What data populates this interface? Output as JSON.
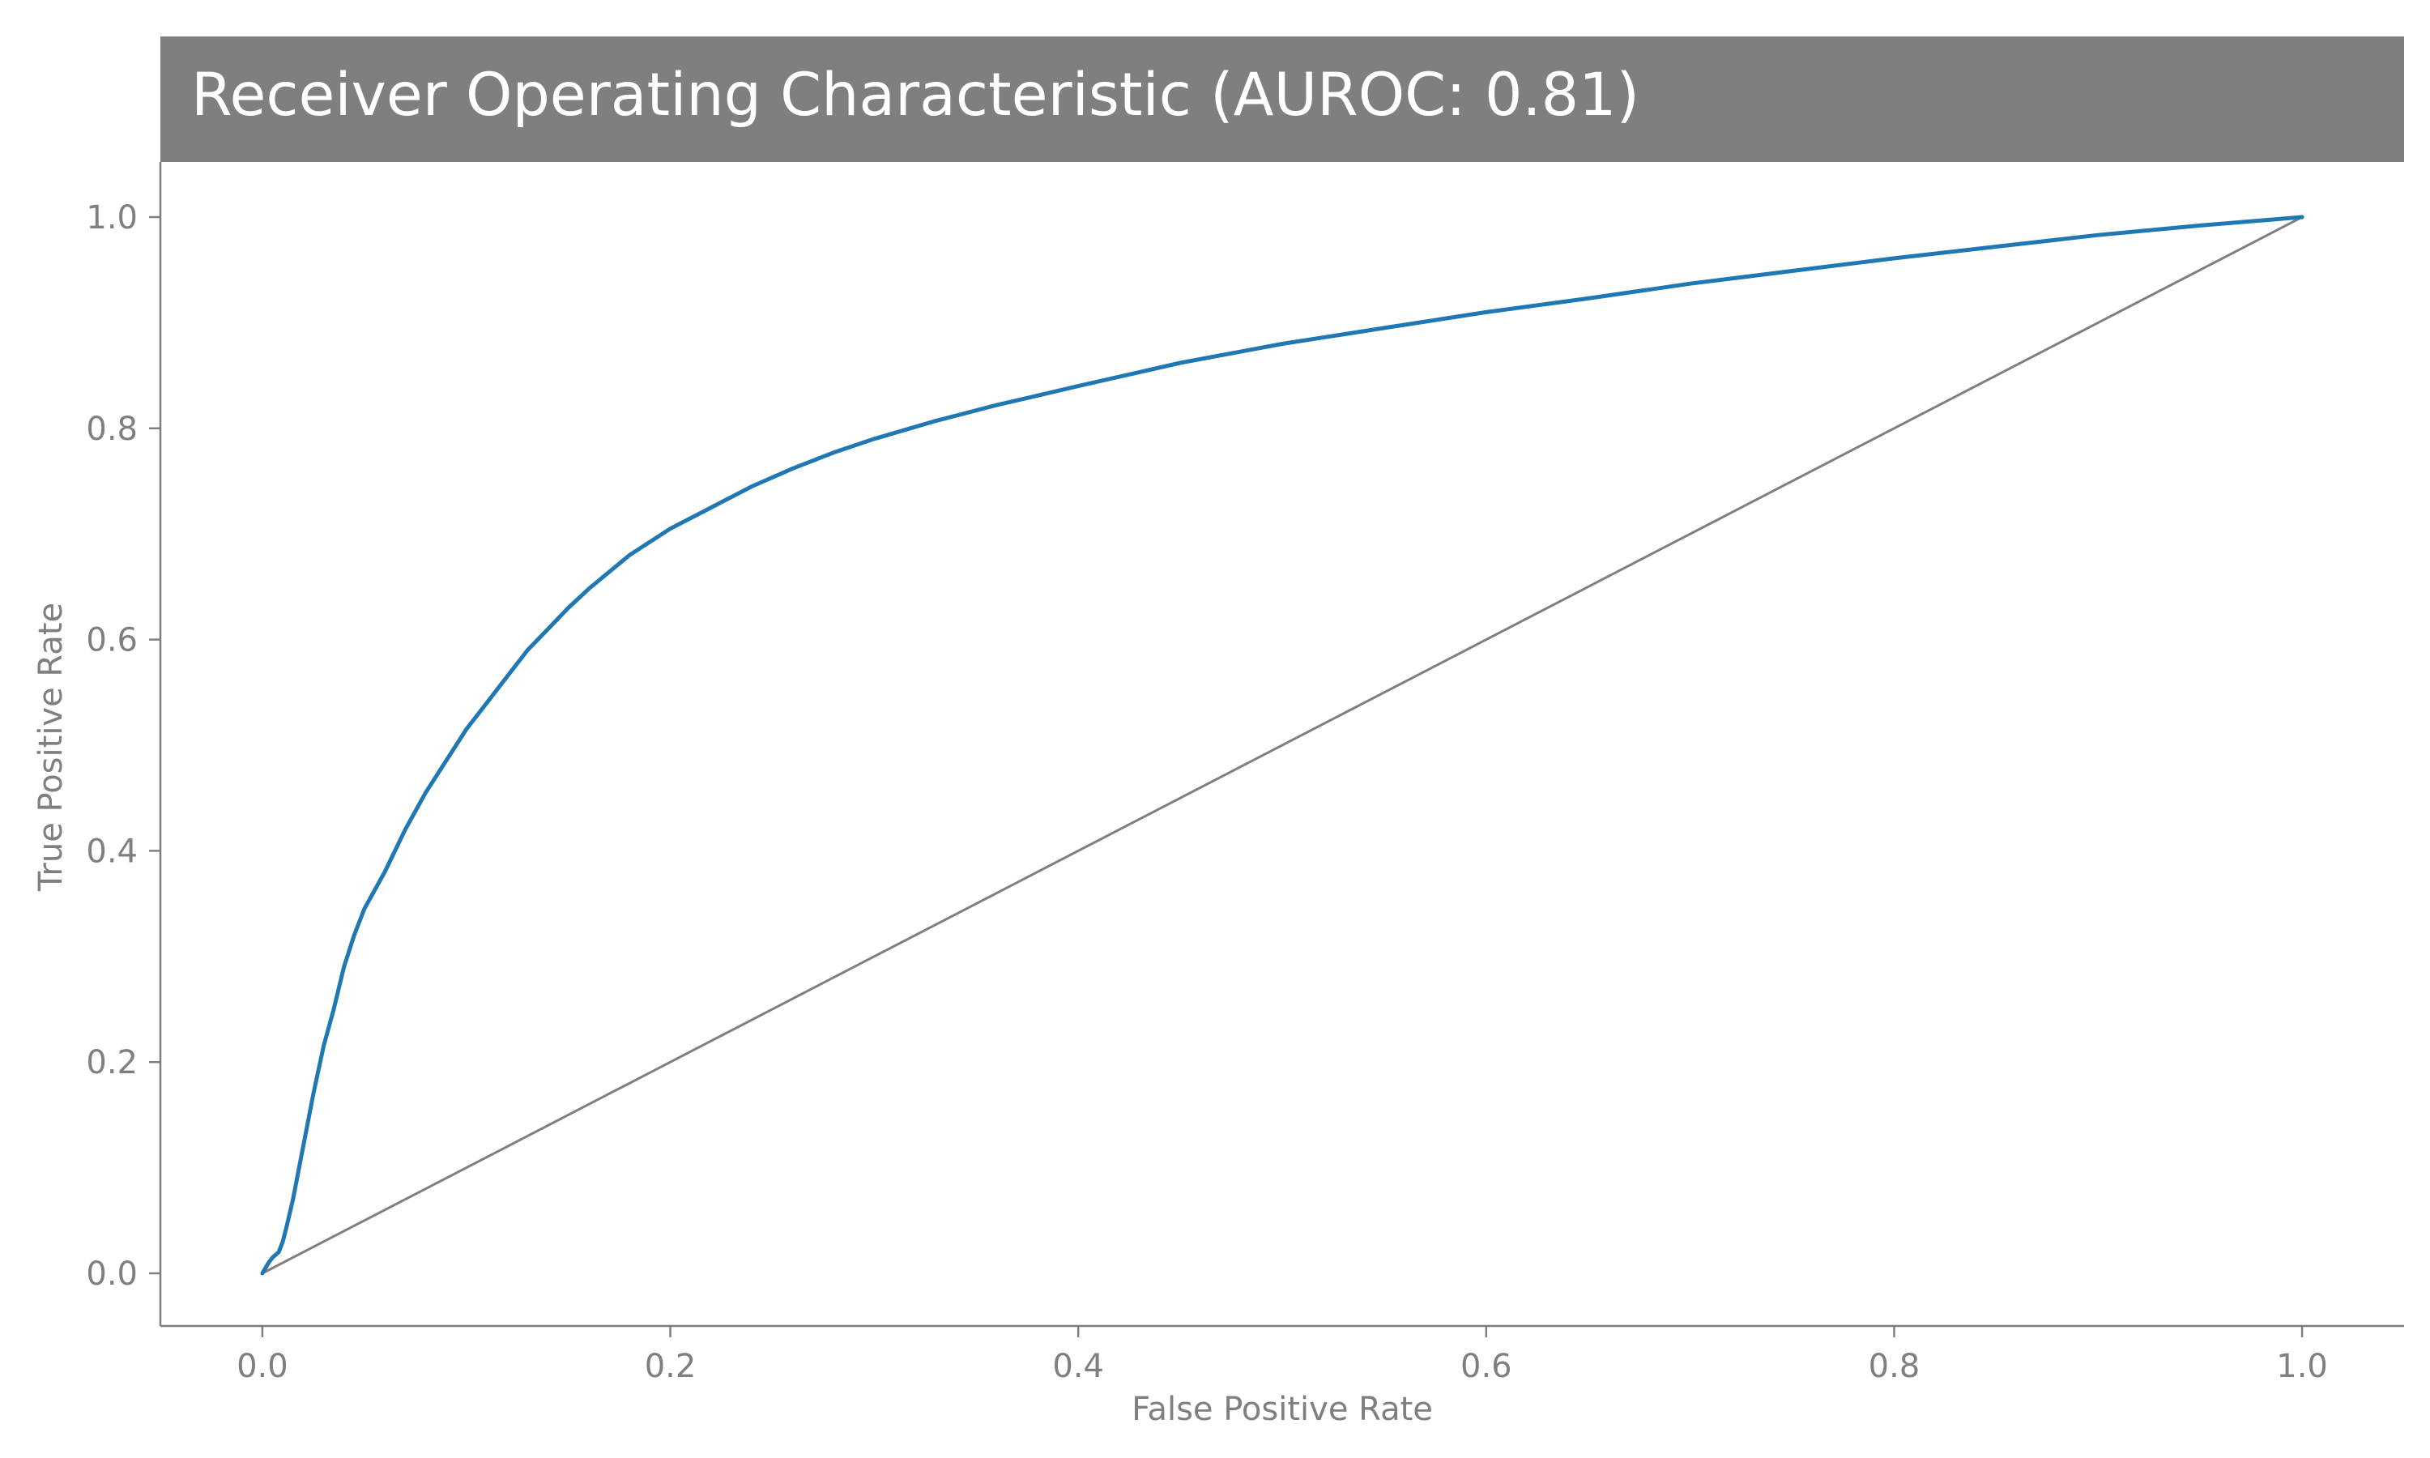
{
  "chart_data": {
    "type": "line",
    "title": "Receiver Operating Characteristic (AUROC: 0.81)",
    "xlabel": "False Positive Rate",
    "ylabel": "True Positive Rate",
    "xlim": [
      -0.05,
      1.05
    ],
    "ylim": [
      -0.05,
      1.0
    ],
    "xticks": [
      0.0,
      0.2,
      0.4,
      0.6,
      0.8,
      1.0
    ],
    "xtick_labels": [
      "0.0",
      "0.2",
      "0.4",
      "0.6",
      "0.8",
      "1.0"
    ],
    "yticks": [
      0.0,
      0.2,
      0.4,
      0.6,
      0.8,
      1.0
    ],
    "ytick_labels": [
      "0.0",
      "0.2",
      "0.4",
      "0.6",
      "0.8",
      "1.0"
    ],
    "grid": false,
    "legend": "none",
    "series": [
      {
        "role": "roc-curve",
        "color": "#1f77b4",
        "x": [
          0.0,
          0.003,
          0.005,
          0.008,
          0.01,
          0.012,
          0.015,
          0.02,
          0.025,
          0.03,
          0.035,
          0.04,
          0.045,
          0.05,
          0.06,
          0.07,
          0.08,
          0.09,
          0.1,
          0.11,
          0.12,
          0.13,
          0.14,
          0.15,
          0.16,
          0.18,
          0.2,
          0.22,
          0.24,
          0.26,
          0.28,
          0.3,
          0.33,
          0.36,
          0.4,
          0.45,
          0.5,
          0.55,
          0.6,
          0.65,
          0.7,
          0.75,
          0.8,
          0.85,
          0.9,
          0.95,
          1.0
        ],
        "y": [
          0.0,
          0.01,
          0.015,
          0.02,
          0.03,
          0.045,
          0.07,
          0.12,
          0.17,
          0.215,
          0.25,
          0.29,
          0.32,
          0.345,
          0.38,
          0.42,
          0.455,
          0.485,
          0.515,
          0.54,
          0.565,
          0.59,
          0.61,
          0.63,
          0.648,
          0.68,
          0.705,
          0.725,
          0.745,
          0.762,
          0.777,
          0.79,
          0.807,
          0.822,
          0.84,
          0.862,
          0.88,
          0.895,
          0.91,
          0.923,
          0.937,
          0.949,
          0.961,
          0.972,
          0.983,
          0.992,
          1.0
        ]
      },
      {
        "role": "chance-line",
        "color": "#7f7f7f",
        "x": [
          0.0,
          1.0
        ],
        "y": [
          0.0,
          1.0
        ]
      }
    ],
    "colors": {
      "title_background": "#7f7f7f",
      "title_text": "#ffffff",
      "axis": "#7f7f7f",
      "background": "#ffffff"
    }
  }
}
